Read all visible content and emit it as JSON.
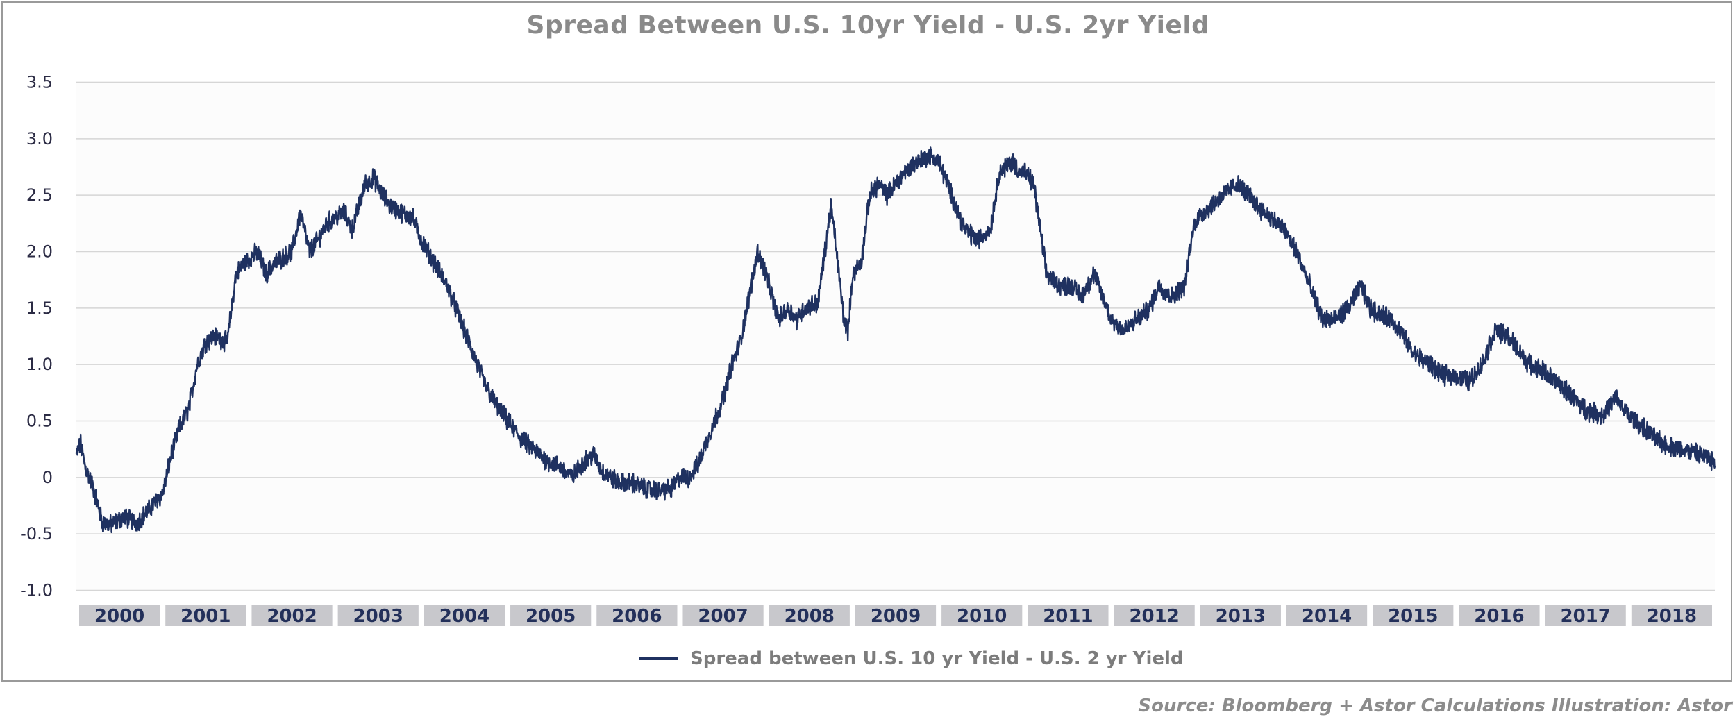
{
  "chart_data": {
    "type": "line",
    "title": "Spread Between U.S. 10yr Yield - U.S. 2yr Yield",
    "ylabel": "",
    "xlabel": "",
    "ylim": [
      -1.0,
      3.5
    ],
    "xlim": [
      2000.0,
      2019.0
    ],
    "y_ticks": [
      "3.5",
      "3.0",
      "2.5",
      "2.0",
      "1.5",
      "1.0",
      "0.5",
      "0",
      "-0.5",
      "-1.0"
    ],
    "y_tick_values": [
      3.5,
      3.0,
      2.5,
      2.0,
      1.5,
      1.0,
      0.5,
      0,
      -0.5,
      -1.0
    ],
    "x_ticks": [
      "2000",
      "2001",
      "2002",
      "2003",
      "2004",
      "2005",
      "2006",
      "2007",
      "2008",
      "2009",
      "2010",
      "2011",
      "2012",
      "2013",
      "2014",
      "2015",
      "2016",
      "2017",
      "2018"
    ],
    "grid": true,
    "legend_position": "bottom",
    "series": [
      {
        "name": "Spread between U.S. 10 yr Yield - U.S. 2 yr Yield",
        "color": "#1f3160",
        "x": [
          2000.0,
          2000.05,
          2000.1,
          2000.2,
          2000.3,
          2000.4,
          2000.55,
          2000.7,
          2000.85,
          2000.95,
          2001.0,
          2001.1,
          2001.2,
          2001.3,
          2001.4,
          2001.5,
          2001.6,
          2001.75,
          2001.85,
          2001.95,
          2002.1,
          2002.2,
          2002.3,
          2002.4,
          2002.5,
          2002.6,
          2002.7,
          2002.8,
          2002.9,
          2003.0,
          2003.1,
          2003.2,
          2003.35,
          2003.45,
          2003.55,
          2003.65,
          2003.75,
          2003.9,
          2004.0,
          2004.15,
          2004.3,
          2004.45,
          2004.6,
          2004.75,
          2004.9,
          2005.0,
          2005.15,
          2005.3,
          2005.45,
          2005.6,
          2005.75,
          2005.9,
          2006.0,
          2006.1,
          2006.2,
          2006.3,
          2006.45,
          2006.6,
          2006.75,
          2006.9,
          2007.0,
          2007.1,
          2007.2,
          2007.3,
          2007.4,
          2007.5,
          2007.6,
          2007.7,
          2007.8,
          2007.9,
          2008.0,
          2008.1,
          2008.15,
          2008.25,
          2008.35,
          2008.45,
          2008.6,
          2008.75,
          2008.8,
          2008.9,
          2008.95,
          2009.0,
          2009.1,
          2009.2,
          2009.3,
          2009.4,
          2009.5,
          2009.6,
          2009.75,
          2009.9,
          2010.0,
          2010.1,
          2010.2,
          2010.3,
          2010.45,
          2010.6,
          2010.7,
          2010.85,
          2010.95,
          2011.0,
          2011.1,
          2011.25,
          2011.4,
          2011.55,
          2011.65,
          2011.8,
          2011.95,
          2012.0,
          2012.15,
          2012.3,
          2012.45,
          2012.55,
          2012.7,
          2012.85,
          2012.95,
          2013.0,
          2013.15,
          2013.3,
          2013.45,
          2013.6,
          2013.7,
          2013.85,
          2014.0,
          2014.15,
          2014.3,
          2014.45,
          2014.6,
          2014.75,
          2014.9,
          2015.0,
          2015.1,
          2015.25,
          2015.35,
          2015.5,
          2015.7,
          2015.85,
          2016.0,
          2016.15,
          2016.3,
          2016.45,
          2016.6,
          2016.75,
          2016.85,
          2017.0,
          2017.15,
          2017.3,
          2017.5,
          2017.7,
          2017.85,
          2018.0,
          2018.15,
          2018.3,
          2018.45,
          2018.6,
          2018.75,
          2018.9,
          2019.0
        ],
        "y": [
          0.2,
          0.3,
          0.1,
          -0.1,
          -0.4,
          -0.42,
          -0.35,
          -0.4,
          -0.28,
          -0.18,
          -0.15,
          0.2,
          0.45,
          0.6,
          1.0,
          1.2,
          1.25,
          1.2,
          1.8,
          1.9,
          2.0,
          1.8,
          1.9,
          1.95,
          2.0,
          2.35,
          2.0,
          2.1,
          2.25,
          2.3,
          2.35,
          2.2,
          2.6,
          2.65,
          2.5,
          2.4,
          2.35,
          2.3,
          2.1,
          1.9,
          1.7,
          1.4,
          1.1,
          0.8,
          0.6,
          0.5,
          0.35,
          0.25,
          0.15,
          0.1,
          0.0,
          0.15,
          0.2,
          0.05,
          0.0,
          -0.05,
          -0.05,
          -0.1,
          -0.12,
          -0.1,
          0.0,
          0.0,
          0.1,
          0.3,
          0.5,
          0.7,
          1.0,
          1.2,
          1.6,
          2.0,
          1.8,
          1.5,
          1.4,
          1.5,
          1.4,
          1.5,
          1.55,
          2.4,
          2.1,
          1.4,
          1.3,
          1.8,
          1.9,
          2.5,
          2.6,
          2.5,
          2.6,
          2.7,
          2.8,
          2.85,
          2.8,
          2.6,
          2.4,
          2.2,
          2.1,
          2.2,
          2.7,
          2.8,
          2.7,
          2.7,
          2.6,
          1.8,
          1.7,
          1.7,
          1.6,
          1.8,
          1.5,
          1.4,
          1.3,
          1.4,
          1.5,
          1.7,
          1.6,
          1.7,
          2.2,
          2.3,
          2.4,
          2.5,
          2.6,
          2.5,
          2.4,
          2.3,
          2.2,
          2.0,
          1.7,
          1.4,
          1.4,
          1.5,
          1.7,
          1.5,
          1.45,
          1.4,
          1.3,
          1.1,
          1.0,
          0.9,
          0.9,
          0.85,
          1.0,
          1.3,
          1.25,
          1.1,
          1.0,
          0.95,
          0.85,
          0.75,
          0.6,
          0.55,
          0.7,
          0.55,
          0.45,
          0.35,
          0.28,
          0.25,
          0.22,
          0.18,
          0.12
        ]
      }
    ]
  },
  "legend": {
    "label": "Spread between U.S. 10 yr Yield - U.S. 2 yr Yield"
  },
  "source": {
    "text": "Source: Bloomberg  + Astor Calculations  Illustration: Astor"
  }
}
